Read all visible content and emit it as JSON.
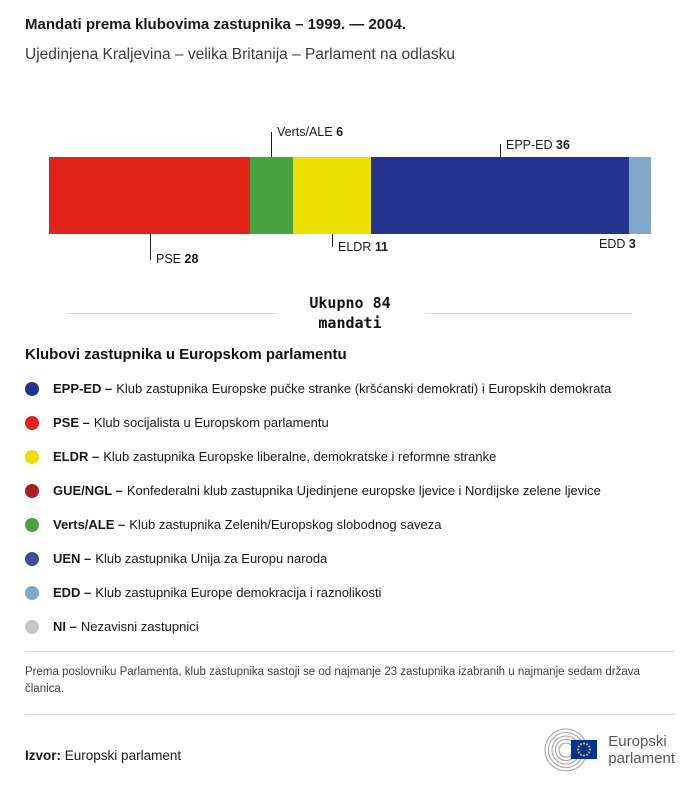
{
  "header": {
    "title": "Mandati prema klubovima zastupnika – 1999. — 2004.",
    "subtitle": "Ujedinjena Kraljevina – velika Britanija – Parlament na odlasku"
  },
  "chart_data": {
    "type": "bar",
    "variant": "horizontal-stacked",
    "title": "Mandati prema klubovima zastupnika – 1999. — 2004.",
    "subtitle": "Ujedinjena Kraljevina – velika Britanija – Parlament na odlasku",
    "total": 84,
    "segments": [
      {
        "label": "PSE",
        "value": 28,
        "color": "#e2231a",
        "callout": "below"
      },
      {
        "label": "Verts/ALE",
        "value": 6,
        "color": "#47a23f",
        "callout": "above"
      },
      {
        "label": "ELDR",
        "value": 11,
        "color": "#ebdf00",
        "callout": "below"
      },
      {
        "label": "EPP-ED",
        "value": 36,
        "color": "#24338d",
        "callout": "above"
      },
      {
        "label": "EDD",
        "value": 3,
        "color": "#80a8c8",
        "callout": "below"
      }
    ]
  },
  "total_block": {
    "line1": "Ukupno 84",
    "line2": "mandati"
  },
  "legend": {
    "heading": "Klubovi zastupnika u Europskom parlamentu",
    "items": [
      {
        "abbr": "EPP-ED –",
        "desc": "Klub zastupnika Europske pučke stranke (kršćanski demokrati) i Europskih demokrata",
        "color": "#24338d"
      },
      {
        "abbr": "PSE –",
        "desc": "Klub socijalista u Europskom parlamentu",
        "color": "#e2231a"
      },
      {
        "abbr": "ELDR –",
        "desc": "Klub zastupnika Europske liberalne, demokratske i reformne stranke",
        "color": "#ebdf00"
      },
      {
        "abbr": "GUE/NGL –",
        "desc": "Konfederalni klub zastupnika Ujedinjene europske ljevice i Nordijske zelene ljevice",
        "color": "#ae1d24"
      },
      {
        "abbr": "Verts/ALE –",
        "desc": "Klub zastupnika Zelenih/Europskog slobodnog saveza",
        "color": "#47a23f"
      },
      {
        "abbr": "UEN –",
        "desc": "Klub zastupnika Unija za Europu naroda",
        "color": "#41518d"
      },
      {
        "abbr": "EDD –",
        "desc": "Klub zastupnika Europe demokracija i raznolikosti",
        "color": "#80a8c8"
      },
      {
        "abbr": "NI –",
        "desc": "Nezavisni zastupnici",
        "color": "#c5c5c5"
      }
    ]
  },
  "footnote": "Prema poslovniku Parlamenta, klub zastupnika sastoji se od najmanje 23 zastupnika izabranih u najmanje sedam država članica.",
  "footer": {
    "source_label": "Izvor:",
    "source_value": "Europski parlament",
    "logo_line1": "Europski",
    "logo_line2": "parlament"
  }
}
